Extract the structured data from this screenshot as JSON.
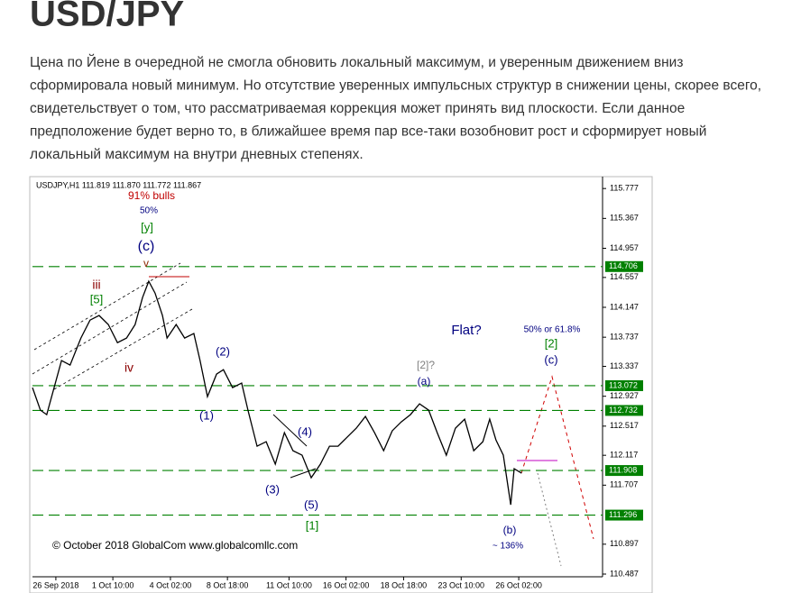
{
  "title": "USD/JPY",
  "text_lines": [
    "Цена по Йене в очередной не смогла  обновить локальный максимум, и уверенным движением вниз",
    "сформировала новый минимум. Но отсутствие уверенных импульсных структур в снижении цены, скорее всего,",
    "свидетельствует о том, что рассматриваемая коррекция может принять вид плоскости. Если данное",
    "предположение будет верно то, в ближайшее время пар все-таки возобновит рост и сформирует новый",
    "локальный максимум на внутри дневных степенях."
  ],
  "chart_data": {
    "type": "line",
    "header": "USDJPY,H1  111.819 111.870 111.772 111.867",
    "footer": "© October 2018 GlobalCom www.globalcomllc.com",
    "color": "#000000",
    "x": [
      0,
      1.4,
      2.5,
      3.8,
      5.1,
      6.6,
      8.5,
      10.1,
      11.7,
      13.3,
      14.9,
      16.5,
      18.0,
      19.3,
      20.4,
      21.5,
      22.8,
      23.6,
      25.2,
      26.7,
      28.3,
      29.4,
      30.7,
      32.3,
      33.5,
      35.1,
      36.7,
      37.8,
      39.4,
      41.0,
      42.6,
      44.2,
      45.7,
      47.3,
      48.9,
      50.5,
      52.1,
      53.6,
      55.2,
      56.8,
      58.4,
      60.0,
      61.6,
      63.1,
      64.7,
      66.3,
      67.9,
      69.5,
      71.0,
      72.6,
      74.2,
      75.8,
      77.4,
      79.0,
      80.2,
      81.3,
      82.6,
      83.9,
      84.5,
      85.8
    ],
    "values": [
      113.045,
      112.736,
      112.674,
      113.045,
      113.416,
      113.354,
      113.725,
      113.972,
      114.034,
      113.911,
      113.663,
      113.725,
      113.911,
      114.281,
      114.504,
      114.343,
      114.034,
      113.725,
      113.911,
      113.725,
      113.787,
      113.416,
      112.922,
      113.231,
      113.292,
      113.045,
      113.107,
      112.736,
      112.242,
      112.304,
      111.995,
      112.427,
      112.18,
      112.118,
      111.809,
      111.995,
      112.242,
      112.242,
      112.365,
      112.489,
      112.65,
      112.427,
      112.18,
      112.452,
      112.576,
      112.674,
      112.823,
      112.736,
      112.427,
      112.118,
      112.489,
      112.613,
      112.18,
      112.304,
      112.613,
      112.328,
      112.118,
      111.438,
      111.933,
      111.871
    ],
    "xlim": [
      0,
      100
    ],
    "xticks": [
      {
        "value": 4.1,
        "label": "26 Sep 2018"
      },
      {
        "value": 14.1,
        "label": "1 Oct 10:00"
      },
      {
        "value": 24.2,
        "label": "4 Oct 02:00"
      },
      {
        "value": 34.2,
        "label": "8 Oct 18:00"
      },
      {
        "value": 45.0,
        "label": "11 Oct 10:00"
      },
      {
        "value": 55.0,
        "label": "16 Oct 02:00"
      },
      {
        "value": 65.1,
        "label": "18 Oct 18:00"
      },
      {
        "value": 75.2,
        "label": "23 Oct 10:00"
      },
      {
        "value": 85.3,
        "label": "26 Oct 02:00"
      }
    ],
    "ylim": [
      110.45,
      115.94
    ],
    "yticks": [
      115.777,
      115.367,
      114.957,
      114.557,
      114.147,
      113.737,
      113.337,
      112.927,
      112.517,
      112.117,
      111.707,
      110.897,
      110.487
    ],
    "levels": [
      114.706,
      113.072,
      112.732,
      111.908,
      111.296
    ],
    "level_color": "#008000",
    "annotations": [
      {
        "text": "91% bulls",
        "color": "#c00000"
      },
      {
        "text": "50%",
        "color": "#000080"
      },
      {
        "text": "[y]",
        "color": "#008000"
      },
      {
        "text": "(c)",
        "color": "#000080"
      },
      {
        "text": "v",
        "color": "#8b2500"
      },
      {
        "text": "iii",
        "color": "#8b0000"
      },
      {
        "text": "[5]",
        "color": "#008000"
      },
      {
        "text": "iv",
        "color": "#8b0000"
      },
      {
        "text": "(2)",
        "color": "#000080"
      },
      {
        "text": "(1)",
        "color": "#000080"
      },
      {
        "text": "(4)",
        "color": "#000080"
      },
      {
        "text": "(3)",
        "color": "#000080"
      },
      {
        "text": "(5)",
        "color": "#000080"
      },
      {
        "text": "[1]",
        "color": "#008000"
      },
      {
        "text": "Flat?",
        "color": "#000080"
      },
      {
        "text": "[2]?",
        "color": "#808080"
      },
      {
        "text": "(a)",
        "color": "#000080"
      },
      {
        "text": "50% or 61.8%",
        "color": "#000080"
      },
      {
        "text": "[2]",
        "color": "#008000"
      },
      {
        "text": "(c)",
        "color": "#000080"
      },
      {
        "text": "(b)",
        "color": "#000080"
      },
      {
        "text": "~ 136%",
        "color": "#000080"
      }
    ]
  }
}
